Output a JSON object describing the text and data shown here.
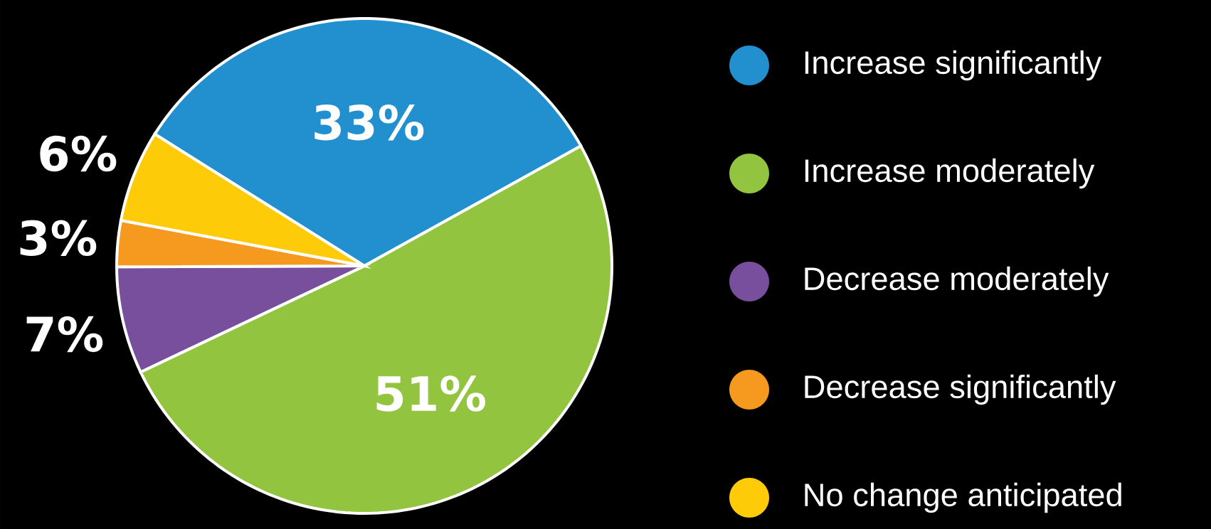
{
  "chart_data": {
    "type": "pie",
    "categories": [
      "Increase significantly",
      "Increase moderately",
      "Decrease moderately",
      "Decrease significantly",
      "No change anticipated"
    ],
    "values": [
      33,
      51,
      7,
      3,
      6
    ],
    "colors": [
      "#2290cf",
      "#92c43f",
      "#784f9c",
      "#f5991f",
      "#fecb08"
    ],
    "value_labels": [
      "33%",
      "51%",
      "7%",
      "3%",
      "6%"
    ],
    "legend": "right"
  }
}
